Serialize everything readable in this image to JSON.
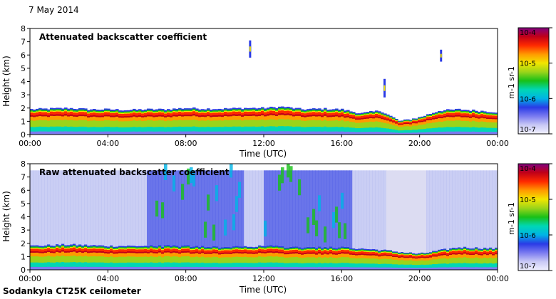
{
  "figure": {
    "date": "7 May 2014",
    "footer": "Sodankyla CT25K ceilometer"
  },
  "chart_data": [
    {
      "type": "heatmap",
      "title": "Attenuated backscatter coefficient",
      "xlabel": "Time (UTC)",
      "ylabel": "Height (km)",
      "x_ticks": [
        "00:00",
        "04:00",
        "08:00",
        "12:00",
        "16:00",
        "20:00",
        "00:00"
      ],
      "x_range_hours": [
        0,
        24
      ],
      "y_ticks": [
        "0",
        "1",
        "2",
        "3",
        "4",
        "5",
        "6",
        "7",
        "8"
      ],
      "ylim": [
        0,
        8
      ],
      "grid": false,
      "colorbar": {
        "scale": "log",
        "range": [
          1e-07,
          0.0001
        ],
        "tick_labels": [
          "10-7",
          "10-6",
          "10-5",
          "10-4"
        ],
        "unit": "m-1 sr-1",
        "colormap": [
          "#f0f0ff",
          "#c9c9f5",
          "#7a7af0",
          "#2a3ae6",
          "#00b4e6",
          "#00d7b4",
          "#18c018",
          "#9ad41a",
          "#f2e600",
          "#ff9a00",
          "#ff2a00",
          "#c00018",
          "#800080"
        ]
      },
      "features": {
        "boundary_layer_top_km": [
          [
            0,
            1.9
          ],
          [
            1,
            1.95
          ],
          [
            2,
            2.0
          ],
          [
            3,
            1.9
          ],
          [
            4,
            1.9
          ],
          [
            5,
            1.85
          ],
          [
            6,
            1.9
          ],
          [
            7,
            1.9
          ],
          [
            8,
            2.0
          ],
          [
            9,
            1.95
          ],
          [
            10,
            1.95
          ],
          [
            11,
            2.0
          ],
          [
            12,
            2.0
          ],
          [
            13,
            2.1
          ],
          [
            14,
            1.9
          ],
          [
            15,
            1.95
          ],
          [
            16,
            1.9
          ],
          [
            17,
            1.6
          ],
          [
            18,
            1.8
          ],
          [
            19,
            1.0
          ],
          [
            20,
            1.3
          ],
          [
            21,
            1.8
          ],
          [
            22,
            1.9
          ],
          [
            23,
            1.8
          ],
          [
            24,
            1.7
          ]
        ],
        "elevated_echoes": [
          {
            "hour": 11.3,
            "height_km": [
              5.8,
              7.1
            ]
          },
          {
            "hour": 18.2,
            "height_km": [
              2.8,
              4.2
            ]
          },
          {
            "hour": 21.1,
            "height_km": [
              5.5,
              6.4
            ]
          }
        ]
      }
    },
    {
      "type": "heatmap",
      "title": "Raw attenuated backscatter coefficient",
      "xlabel": "Time (UTC)",
      "ylabel": "Height (km)",
      "x_ticks": [
        "00:00",
        "04:00",
        "08:00",
        "12:00",
        "16:00",
        "20:00",
        "00:00"
      ],
      "x_range_hours": [
        0,
        24
      ],
      "y_ticks": [
        "0",
        "1",
        "2",
        "3",
        "4",
        "5",
        "6",
        "7",
        "8"
      ],
      "ylim": [
        0,
        8
      ],
      "grid": false,
      "colorbar": {
        "scale": "log",
        "range": [
          1e-07,
          0.0001
        ],
        "tick_labels": [
          "10-7",
          "10-6",
          "10-5",
          "10-4"
        ],
        "unit": "m-1 sr-1"
      },
      "features": {
        "noise_top_km": 7.5,
        "boundary_layer_top_km": [
          [
            0,
            1.8
          ],
          [
            2,
            1.9
          ],
          [
            4,
            1.8
          ],
          [
            6,
            1.8
          ],
          [
            8,
            1.8
          ],
          [
            10,
            1.7
          ],
          [
            12,
            1.8
          ],
          [
            14,
            1.7
          ],
          [
            16,
            1.7
          ],
          [
            18,
            1.5
          ],
          [
            20,
            1.2
          ],
          [
            22,
            1.7
          ],
          [
            24,
            1.6
          ]
        ],
        "noisy_periods_hours": [
          [
            6,
            11
          ],
          [
            12,
            16.5
          ]
        ]
      }
    }
  ]
}
